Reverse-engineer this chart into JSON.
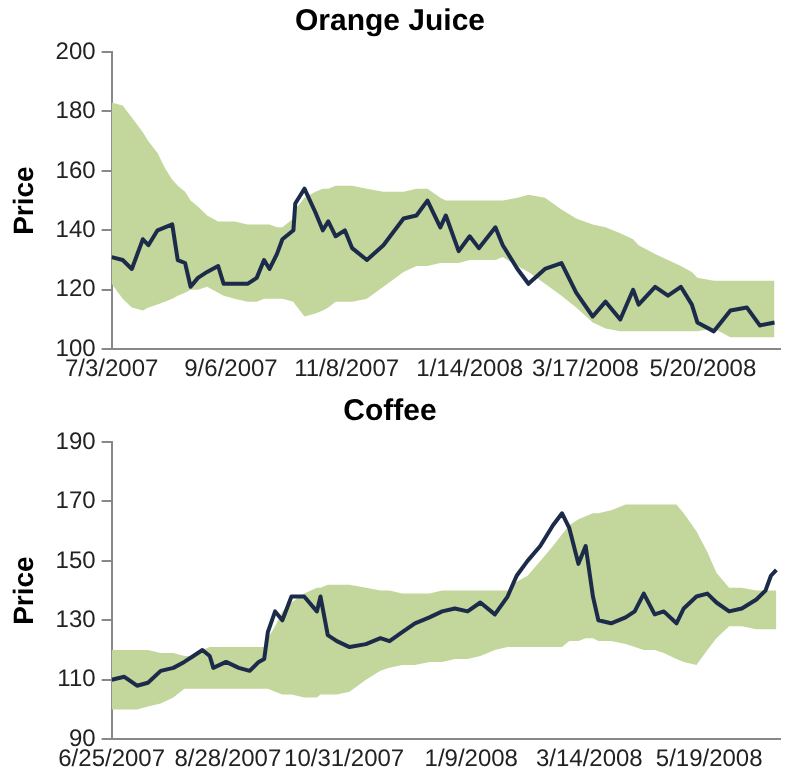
{
  "chart_data": [
    {
      "type": "line",
      "title": "Orange Juice",
      "ylabel": "Price",
      "xlim": [
        "2007-07-03",
        "2008-07-01"
      ],
      "xticks": [
        {
          "value": "2007-07-03",
          "label": "7/3/2007"
        },
        {
          "value": "2007-09-06",
          "label": "9/6/2007"
        },
        {
          "value": "2007-11-08",
          "label": "11/8/2007"
        },
        {
          "value": "2008-01-14",
          "label": "1/14/2008"
        },
        {
          "value": "2008-03-17",
          "label": "3/17/2008"
        },
        {
          "value": "2008-05-20",
          "label": "5/20/2008"
        }
      ],
      "ylim": [
        100,
        200
      ],
      "yticks": [
        100,
        120,
        140,
        160,
        180,
        200
      ],
      "marker": "none",
      "line_style": "solid",
      "series": [
        {
          "color": "#1c2b4a",
          "x": [
            "2007-07-03",
            "2007-07-09",
            "2007-07-14",
            "2007-07-20",
            "2007-07-23",
            "2007-07-28",
            "2007-08-01",
            "2007-08-05",
            "2007-08-08",
            "2007-08-12",
            "2007-08-15",
            "2007-08-19",
            "2007-08-24",
            "2007-08-30",
            "2007-09-02",
            "2007-09-08",
            "2007-09-15",
            "2007-09-20",
            "2007-09-24",
            "2007-09-27",
            "2007-10-01",
            "2007-10-04",
            "2007-10-10",
            "2007-10-11",
            "2007-10-16",
            "2007-10-22",
            "2007-10-26",
            "2007-10-29",
            "2007-11-02",
            "2007-11-07",
            "2007-11-11",
            "2007-11-19",
            "2007-11-28",
            "2007-12-09",
            "2007-12-16",
            "2007-12-22",
            "2007-12-29",
            "2008-01-01",
            "2008-01-08",
            "2008-01-14",
            "2008-01-19",
            "2008-01-28",
            "2008-02-01",
            "2008-02-09",
            "2008-02-15",
            "2008-02-24",
            "2008-03-04",
            "2008-03-12",
            "2008-03-21",
            "2008-03-28",
            "2008-04-05",
            "2008-04-12",
            "2008-04-15",
            "2008-04-24",
            "2008-05-01",
            "2008-05-08",
            "2008-05-14",
            "2008-05-17",
            "2008-05-26",
            "2008-06-04",
            "2008-06-13",
            "2008-06-20",
            "2008-06-28"
          ],
          "values": [
            131,
            130,
            127,
            137,
            135,
            140,
            141,
            142,
            130,
            129,
            121,
            124,
            126,
            128,
            122,
            122,
            122,
            124,
            130,
            127,
            132,
            137,
            140,
            149,
            154,
            146,
            140,
            143,
            138,
            140,
            134,
            130,
            135,
            144,
            145,
            150,
            141,
            145,
            133,
            138,
            134,
            141,
            135,
            127,
            122,
            127,
            129,
            119,
            111,
            116,
            110,
            120,
            115,
            121,
            118,
            121,
            115,
            109,
            106,
            113,
            114,
            108,
            109
          ],
          "lower": [
            122,
            117,
            114,
            113,
            114,
            115,
            116,
            117,
            118,
            119,
            120,
            120,
            121,
            119,
            118,
            117,
            116,
            116,
            117,
            117,
            117,
            117,
            116,
            115,
            111,
            112,
            113,
            114,
            116,
            116,
            116,
            117,
            121,
            126,
            128,
            128,
            129,
            129,
            129,
            130,
            130,
            130,
            131,
            128,
            126,
            122,
            118,
            114,
            109,
            107,
            106,
            106,
            106,
            106,
            106,
            106,
            106,
            106,
            107,
            104,
            104,
            104,
            104
          ],
          "upper": [
            183,
            182,
            178,
            173,
            170,
            166,
            161,
            157,
            155,
            153,
            150,
            148,
            145,
            143,
            143,
            143,
            142,
            142,
            142,
            142,
            141,
            141,
            144,
            147,
            151,
            153,
            154,
            154,
            155,
            155,
            155,
            154,
            153,
            153,
            154,
            154,
            151,
            150,
            150,
            150,
            150,
            150,
            150,
            151,
            152,
            151,
            147,
            144,
            142,
            141,
            139,
            137,
            135,
            132,
            130,
            128,
            126,
            124,
            123,
            123,
            123,
            123,
            123
          ]
        }
      ]
    },
    {
      "type": "line",
      "title": "Coffee",
      "ylabel": "Price",
      "xlim": [
        "2007-06-25",
        "2008-06-27"
      ],
      "xticks": [
        {
          "value": "2007-06-25",
          "label": "6/25/2007"
        },
        {
          "value": "2007-08-28",
          "label": "8/28/2007"
        },
        {
          "value": "2007-10-31",
          "label": "10/31/2007"
        },
        {
          "value": "2008-01-09",
          "label": "1/9/2008"
        },
        {
          "value": "2008-03-14",
          "label": "3/14/2008"
        },
        {
          "value": "2008-05-19",
          "label": "5/19/2008"
        }
      ],
      "ylim": [
        90,
        190
      ],
      "yticks": [
        90,
        110,
        130,
        150,
        170,
        190
      ],
      "marker": "none",
      "line_style": "solid",
      "series": [
        {
          "color": "#1c2b4a",
          "x": [
            "2007-06-25",
            "2007-07-02",
            "2007-07-09",
            "2007-07-15",
            "2007-07-22",
            "2007-07-29",
            "2007-08-04",
            "2007-08-09",
            "2007-08-14",
            "2007-08-18",
            "2007-08-20",
            "2007-08-27",
            "2007-09-03",
            "2007-09-09",
            "2007-09-14",
            "2007-09-17",
            "2007-09-19",
            "2007-09-23",
            "2007-09-27",
            "2007-10-02",
            "2007-10-09",
            "2007-10-16",
            "2007-10-18",
            "2007-10-22",
            "2007-10-27",
            "2007-11-03",
            "2007-11-12",
            "2007-11-20",
            "2007-11-25",
            "2007-12-02",
            "2007-12-09",
            "2007-12-17",
            "2007-12-24",
            "2007-12-31",
            "2008-01-07",
            "2008-01-14",
            "2008-01-22",
            "2008-01-29",
            "2008-02-03",
            "2008-02-09",
            "2008-02-16",
            "2008-02-23",
            "2008-02-28",
            "2008-03-03",
            "2008-03-08",
            "2008-03-12",
            "2008-03-16",
            "2008-03-19",
            "2008-03-26",
            "2008-04-03",
            "2008-04-08",
            "2008-04-13",
            "2008-04-19",
            "2008-04-24",
            "2008-05-01",
            "2008-05-05",
            "2008-05-12",
            "2008-05-18",
            "2008-05-23",
            "2008-05-30",
            "2008-06-06",
            "2008-06-14",
            "2008-06-19",
            "2008-06-22",
            "2008-06-25"
          ],
          "values": [
            110,
            111,
            108,
            109,
            113,
            114,
            116,
            118,
            120,
            118,
            114,
            116,
            114,
            113,
            116,
            117,
            126,
            133,
            130,
            138,
            138,
            133,
            138,
            125,
            123,
            121,
            122,
            124,
            123,
            126,
            129,
            131,
            133,
            134,
            133,
            136,
            132,
            138,
            145,
            150,
            155,
            162,
            166,
            161,
            149,
            155,
            138,
            130,
            129,
            131,
            133,
            139,
            132,
            133,
            129,
            134,
            138,
            139,
            136,
            133,
            134,
            137,
            140,
            145,
            147
          ],
          "lower": [
            100,
            100,
            100,
            101,
            102,
            104,
            107,
            107,
            107,
            107,
            107,
            107,
            107,
            107,
            107,
            107,
            107,
            106,
            105,
            105,
            104,
            104,
            105,
            105,
            105,
            106,
            110,
            113,
            114,
            115,
            115,
            116,
            116,
            117,
            117,
            118,
            120,
            121,
            121,
            121,
            121,
            121,
            121,
            123,
            123,
            124,
            124,
            123,
            123,
            122,
            121,
            120,
            120,
            119,
            117,
            116,
            115,
            120,
            124,
            128,
            128,
            127,
            127,
            127,
            127
          ],
          "upper": [
            120,
            120,
            120,
            120,
            119,
            119,
            118,
            118,
            120,
            121,
            121,
            121,
            121,
            121,
            121,
            121,
            124,
            128,
            133,
            136,
            139,
            141,
            141,
            142,
            142,
            142,
            141,
            140,
            140,
            139,
            139,
            139,
            140,
            140,
            140,
            140,
            140,
            140,
            143,
            145,
            150,
            155,
            159,
            162,
            164,
            165,
            166,
            166,
            167,
            169,
            169,
            169,
            169,
            169,
            169,
            166,
            160,
            153,
            146,
            141,
            141,
            140,
            140,
            140,
            140
          ]
        }
      ]
    }
  ]
}
